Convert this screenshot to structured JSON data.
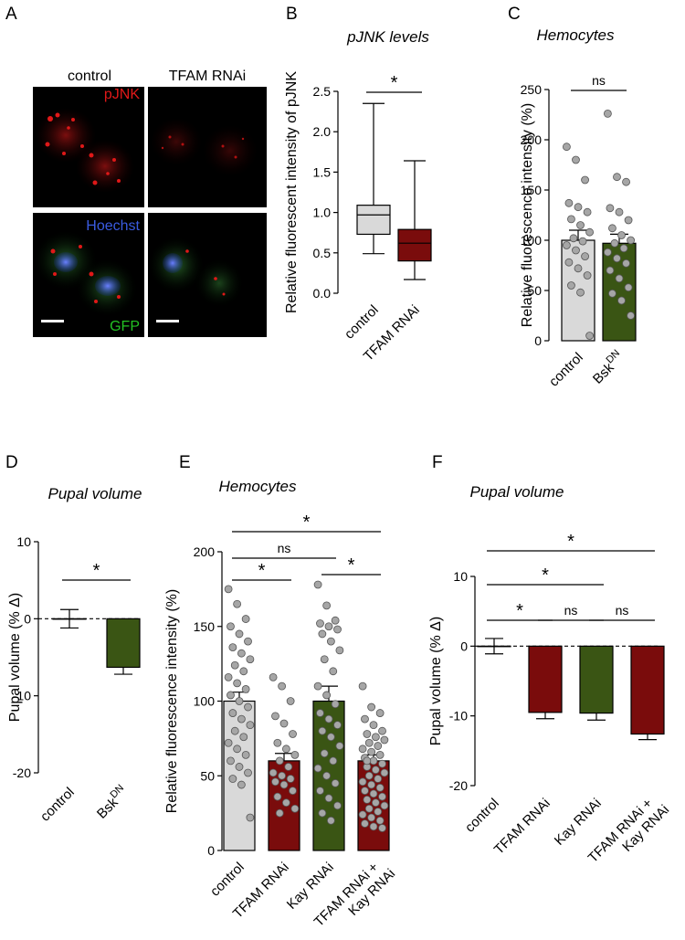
{
  "panels": {
    "A": {
      "letter": "A",
      "columns": [
        "control",
        "TFAM RNAi"
      ],
      "stain_top": "pJNK",
      "stain_mid": "Hoechst",
      "stain_bottom": "GFP",
      "colors": {
        "pjnk": "#e01818",
        "hoechst": "#3a5be0",
        "gfp": "#23c023"
      }
    },
    "B": {
      "letter": "B"
    },
    "C": {
      "letter": "C"
    },
    "D": {
      "letter": "D"
    },
    "E": {
      "letter": "E"
    },
    "F": {
      "letter": "F"
    }
  },
  "colors": {
    "grey": "#d9d9d9",
    "darkred": "#7a0c0c",
    "darkgreen": "#3a5514",
    "dot": "#a6a6a6"
  },
  "chart_data": [
    {
      "id": "B",
      "type": "box",
      "title": "pJNK levels",
      "ylabel": "Relative fluorescent intensity of pJNK",
      "ylim": [
        0,
        2.5
      ],
      "yticks": [
        "0.0",
        "0.5",
        "1.0",
        "1.5",
        "2.0",
        "2.5"
      ],
      "categories": [
        "control",
        "TFAM RNAi"
      ],
      "boxes": [
        {
          "min": 0.49,
          "q1": 0.73,
          "median": 0.97,
          "q3": 1.09,
          "max": 2.35
        },
        {
          "min": 0.17,
          "q1": 0.4,
          "median": 0.62,
          "q3": 0.79,
          "max": 1.64
        }
      ],
      "significance": [
        {
          "from": 0,
          "to": 1,
          "label": "*"
        }
      ]
    },
    {
      "id": "C",
      "type": "bar",
      "title": "Hemocytes",
      "ylabel": "Relative fluorescence intensity (%)",
      "ylim": [
        0,
        250
      ],
      "yticks": [
        "0",
        "50",
        "100",
        "150",
        "200",
        "250"
      ],
      "categories": [
        "control",
        "Bsk"
      ],
      "superscripts": [
        "",
        "DN"
      ],
      "values": [
        100,
        97
      ],
      "sem": [
        10,
        9
      ],
      "points": [
        [
          193,
          180,
          160,
          137,
          133,
          128,
          121,
          115,
          108,
          102,
          99,
          95,
          90,
          84,
          78,
          72,
          65,
          55,
          48,
          5
        ],
        [
          226,
          163,
          158,
          132,
          128,
          120,
          112,
          105,
          100,
          97,
          92,
          88,
          82,
          77,
          70,
          62,
          53,
          47,
          40,
          25
        ]
      ],
      "significance": [
        {
          "from": 0,
          "to": 1,
          "label": "ns"
        }
      ]
    },
    {
      "id": "D",
      "type": "bar",
      "title": "Pupal volume",
      "ylabel": "Pupal volume (% Δ)",
      "ylim": [
        -20,
        10
      ],
      "yticks": [
        "-20",
        "-10",
        "0",
        "10"
      ],
      "categories": [
        "control",
        "Bsk"
      ],
      "superscripts": [
        "",
        "DN"
      ],
      "values": [
        0,
        -6.3
      ],
      "sem": [
        1.2,
        0.9
      ],
      "significance": [
        {
          "from": 0,
          "to": 1,
          "label": "*"
        }
      ]
    },
    {
      "id": "E",
      "type": "bar",
      "title": "Hemocytes",
      "ylabel": "Relative fluorescence intensity (%)",
      "ylim": [
        0,
        200
      ],
      "yticks": [
        "0",
        "50",
        "100",
        "150",
        "200"
      ],
      "categories": [
        "control",
        "TFAM RNAi",
        "Kay RNAi",
        "TFAM RNAi + Kay RNAi"
      ],
      "category_lines": [
        [
          "control"
        ],
        [
          "TFAM RNAi"
        ],
        [
          "Kay RNAi"
        ],
        [
          "TFAM RNAi +",
          "Kay RNAi"
        ]
      ],
      "values": [
        100,
        60,
        100,
        60
      ],
      "sem": [
        6,
        5,
        10,
        4
      ],
      "points": [
        [
          175,
          165,
          155,
          150,
          145,
          140,
          136,
          132,
          128,
          124,
          120,
          116,
          112,
          108,
          104,
          100,
          96,
          92,
          88,
          84,
          80,
          76,
          72,
          68,
          64,
          60,
          56,
          52,
          48,
          44,
          22
        ],
        [
          116,
          110,
          100,
          90,
          85,
          78,
          72,
          68,
          64,
          60,
          56,
          52,
          50,
          48,
          46,
          44,
          40,
          36,
          32,
          28,
          25
        ],
        [
          178,
          164,
          154,
          152,
          150,
          148,
          145,
          140,
          134,
          128,
          120,
          110,
          104,
          98,
          92,
          88,
          84,
          80,
          76,
          70,
          65,
          60,
          55,
          50,
          45,
          40,
          35,
          30,
          25,
          20
        ],
        [
          110,
          96,
          92,
          88,
          84,
          80,
          78,
          76,
          74,
          72,
          70,
          68,
          66,
          64,
          62,
          60,
          58,
          56,
          54,
          52,
          50,
          48,
          46,
          44,
          42,
          40,
          38,
          36,
          34,
          32,
          30,
          28,
          26,
          24,
          22,
          20,
          18,
          16,
          15,
          60
        ]
      ],
      "significance": [
        {
          "from": 0,
          "to": 3,
          "label": "*"
        },
        {
          "from": 0,
          "to": 2,
          "label": "ns"
        },
        {
          "from": 0,
          "to": 1,
          "label": "*"
        },
        {
          "from": 2,
          "to": 3,
          "label": "*"
        }
      ]
    },
    {
      "id": "F",
      "type": "bar",
      "title": "Pupal volume",
      "ylabel": "Pupal volume (% Δ)",
      "ylim": [
        -20,
        10
      ],
      "yticks": [
        "-20",
        "-10",
        "0",
        "10"
      ],
      "categories": [
        "control",
        "TFAM RNAi",
        "Kay RNAi",
        "TFAM RNAi + Kay RNAi"
      ],
      "category_lines": [
        [
          "control"
        ],
        [
          "TFAM RNAi"
        ],
        [
          "Kay RNAi"
        ],
        [
          "TFAM RNAi +",
          "Kay RNAi"
        ]
      ],
      "values": [
        0,
        -9.5,
        -9.6,
        -12.6
      ],
      "sem": [
        1.1,
        0.9,
        1.0,
        0.8
      ],
      "significance": [
        {
          "from": 0,
          "to": 3,
          "label": "*"
        },
        {
          "from": 0,
          "to": 2,
          "label": "*"
        },
        {
          "from": 0,
          "to": 1,
          "label": "*"
        },
        {
          "from": 1,
          "to": 2,
          "label": "ns"
        },
        {
          "from": 2,
          "to": 3,
          "label": "ns"
        }
      ]
    }
  ]
}
